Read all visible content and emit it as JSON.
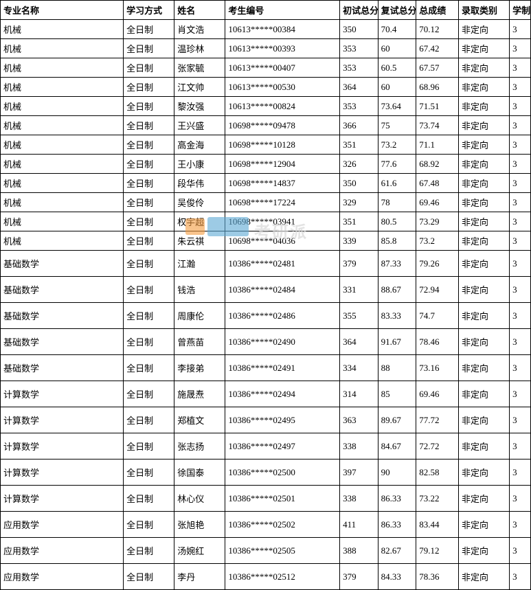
{
  "table": {
    "headers": {
      "major": "专业名称",
      "mode": "学习方式",
      "name": "姓名",
      "exam_id": "考生编号",
      "prelim": "初试总分",
      "retest": "复试总分",
      "total": "总成绩",
      "admit_type": "录取类别",
      "years": "学制"
    },
    "rows": [
      {
        "major": "机械",
        "mode": "全日制",
        "name": "肖文浩",
        "exam_id": "10613*****00384",
        "prelim": "350",
        "retest": "70.4",
        "total": "70.12",
        "type": "非定向",
        "years": "3",
        "tall": false
      },
      {
        "major": "机械",
        "mode": "全日制",
        "name": "温珍林",
        "exam_id": "10613*****00393",
        "prelim": "353",
        "retest": "60",
        "total": "67.42",
        "type": "非定向",
        "years": "3",
        "tall": false
      },
      {
        "major": "机械",
        "mode": "全日制",
        "name": "张家毓",
        "exam_id": "10613*****00407",
        "prelim": "353",
        "retest": "60.5",
        "total": "67.57",
        "type": "非定向",
        "years": "3",
        "tall": false
      },
      {
        "major": "机械",
        "mode": "全日制",
        "name": "江文帅",
        "exam_id": "10613*****00530",
        "prelim": "364",
        "retest": "60",
        "total": "68.96",
        "type": "非定向",
        "years": "3",
        "tall": false
      },
      {
        "major": "机械",
        "mode": "全日制",
        "name": "黎汝强",
        "exam_id": "10613*****00824",
        "prelim": "353",
        "retest": "73.64",
        "total": "71.51",
        "type": "非定向",
        "years": "3",
        "tall": false
      },
      {
        "major": "机械",
        "mode": "全日制",
        "name": "王兴盛",
        "exam_id": "10698*****09478",
        "prelim": "366",
        "retest": "75",
        "total": "73.74",
        "type": "非定向",
        "years": "3",
        "tall": false
      },
      {
        "major": "机械",
        "mode": "全日制",
        "name": "高金海",
        "exam_id": "10698*****10128",
        "prelim": "351",
        "retest": "73.2",
        "total": "71.1",
        "type": "非定向",
        "years": "3",
        "tall": false
      },
      {
        "major": "机械",
        "mode": "全日制",
        "name": "王小康",
        "exam_id": "10698*****12904",
        "prelim": "326",
        "retest": "77.6",
        "total": "68.92",
        "type": "非定向",
        "years": "3",
        "tall": false
      },
      {
        "major": "机械",
        "mode": "全日制",
        "name": "段华伟",
        "exam_id": "10698*****14837",
        "prelim": "350",
        "retest": "61.6",
        "total": "67.48",
        "type": "非定向",
        "years": "3",
        "tall": false
      },
      {
        "major": "机械",
        "mode": "全日制",
        "name": "吴俊伶",
        "exam_id": "10698*****17224",
        "prelim": "329",
        "retest": "78",
        "total": "69.46",
        "type": "非定向",
        "years": "3",
        "tall": false
      },
      {
        "major": "机械",
        "mode": "全日制",
        "name": "权宇超",
        "exam_id": "10698*****03941",
        "prelim": "351",
        "retest": "80.5",
        "total": "73.29",
        "type": "非定向",
        "years": "3",
        "tall": false
      },
      {
        "major": "机械",
        "mode": "全日制",
        "name": "朱云祺",
        "exam_id": "10698*****04036",
        "prelim": "339",
        "retest": "85.8",
        "total": "73.2",
        "type": "非定向",
        "years": "3",
        "tall": false
      },
      {
        "major": "基础数学",
        "mode": "全日制",
        "name": "江瀚",
        "exam_id": "10386*****02481",
        "prelim": "379",
        "retest": "87.33",
        "total": "79.26",
        "type": "非定向",
        "years": "3",
        "tall": true
      },
      {
        "major": "基础数学",
        "mode": "全日制",
        "name": "钱浩",
        "exam_id": "10386*****02484",
        "prelim": "331",
        "retest": "88.67",
        "total": "72.94",
        "type": "非定向",
        "years": "3",
        "tall": true
      },
      {
        "major": "基础数学",
        "mode": "全日制",
        "name": "周康伦",
        "exam_id": "10386*****02486",
        "prelim": "355",
        "retest": "83.33",
        "total": "74.7",
        "type": "非定向",
        "years": "3",
        "tall": true
      },
      {
        "major": "基础数学",
        "mode": "全日制",
        "name": "曾燕苗",
        "exam_id": "10386*****02490",
        "prelim": "364",
        "retest": "91.67",
        "total": "78.46",
        "type": "非定向",
        "years": "3",
        "tall": true
      },
      {
        "major": "基础数学",
        "mode": "全日制",
        "name": "李接弟",
        "exam_id": "10386*****02491",
        "prelim": "334",
        "retest": "88",
        "total": "73.16",
        "type": "非定向",
        "years": "3",
        "tall": true
      },
      {
        "major": "计算数学",
        "mode": "全日制",
        "name": "施晟焘",
        "exam_id": "10386*****02494",
        "prelim": "314",
        "retest": "85",
        "total": "69.46",
        "type": "非定向",
        "years": "3",
        "tall": true
      },
      {
        "major": "计算数学",
        "mode": "全日制",
        "name": "郑植文",
        "exam_id": "10386*****02495",
        "prelim": "363",
        "retest": "89.67",
        "total": "77.72",
        "type": "非定向",
        "years": "3",
        "tall": true
      },
      {
        "major": "计算数学",
        "mode": "全日制",
        "name": "张志扬",
        "exam_id": "10386*****02497",
        "prelim": "338",
        "retest": "84.67",
        "total": "72.72",
        "type": "非定向",
        "years": "3",
        "tall": true
      },
      {
        "major": "计算数学",
        "mode": "全日制",
        "name": "徐国泰",
        "exam_id": "10386*****02500",
        "prelim": "397",
        "retest": "90",
        "total": "82.58",
        "type": "非定向",
        "years": "3",
        "tall": true
      },
      {
        "major": "计算数学",
        "mode": "全日制",
        "name": "林心仪",
        "exam_id": "10386*****02501",
        "prelim": "338",
        "retest": "86.33",
        "total": "73.22",
        "type": "非定向",
        "years": "3",
        "tall": true
      },
      {
        "major": "应用数学",
        "mode": "全日制",
        "name": "张旭艳",
        "exam_id": "10386*****02502",
        "prelim": "411",
        "retest": "86.33",
        "total": "83.44",
        "type": "非定向",
        "years": "3",
        "tall": true
      },
      {
        "major": "应用数学",
        "mode": "全日制",
        "name": "汤婉红",
        "exam_id": "10386*****02505",
        "prelim": "388",
        "retest": "82.67",
        "total": "79.12",
        "type": "非定向",
        "years": "3",
        "tall": true
      },
      {
        "major": "应用数学",
        "mode": "全日制",
        "name": "李丹",
        "exam_id": "10386*****02512",
        "prelim": "379",
        "retest": "84.33",
        "total": "78.36",
        "type": "非定向",
        "years": "3",
        "tall": true
      }
    ]
  },
  "watermark": {
    "text": "考研派"
  },
  "styling": {
    "border_color": "#000000",
    "background": "#ffffff",
    "font_family": "SimSun",
    "header_fontsize": 13,
    "cell_fontsize": 13,
    "watermark_orange": "#f49b3f",
    "watermark_blue": "#5ba8d4",
    "watermark_textcolor": "#d8d8d8"
  }
}
